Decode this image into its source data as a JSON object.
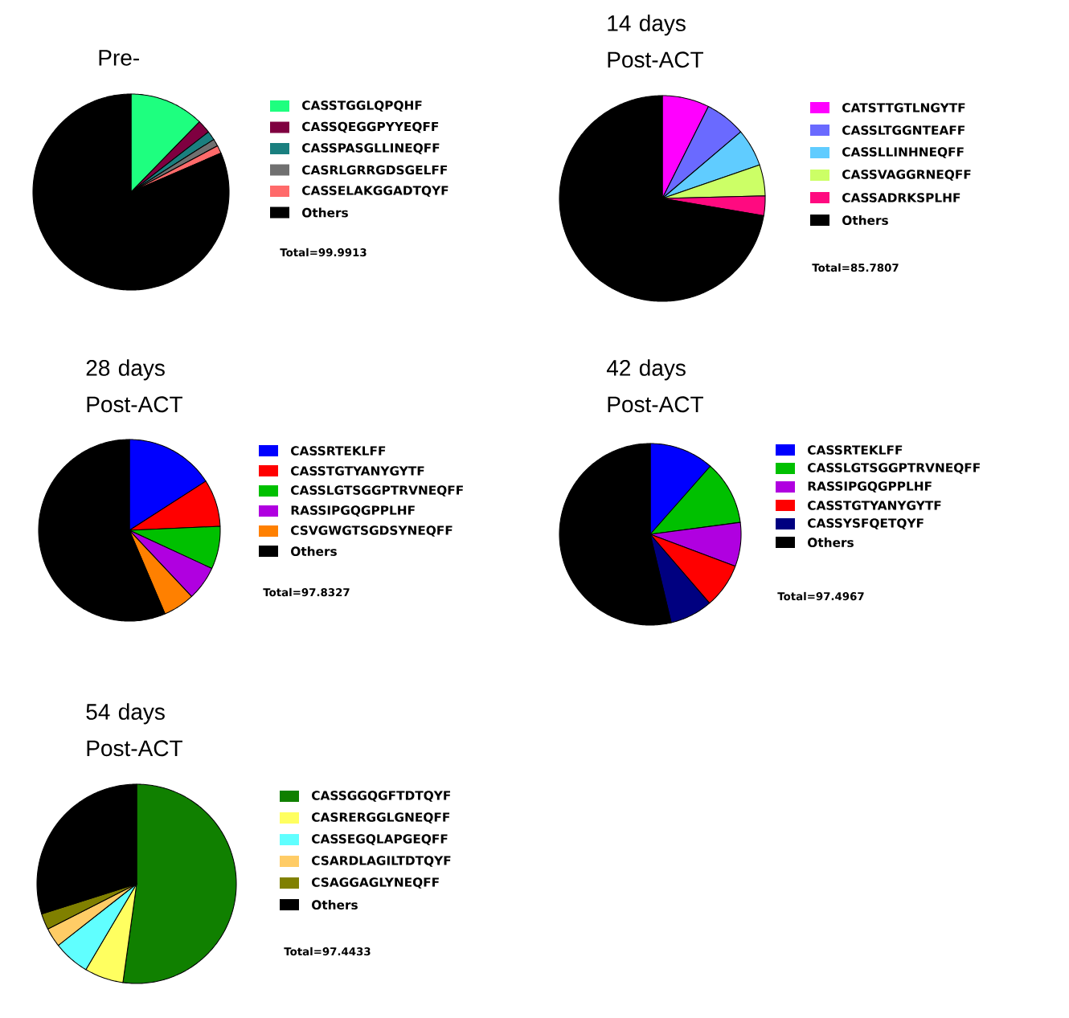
{
  "chart_data": [
    {
      "type": "pie",
      "title": "Pre-",
      "legend": "right",
      "annotations": [
        "Total=99.9913"
      ],
      "categories": [
        "CASSTGGLQPQHF",
        "CASSQEGGPYYEQFF",
        "CASSPASGLLINEQFF",
        "CASRLGRRGDSGELFF",
        "CASSELAKGGADTQYF",
        "Others"
      ],
      "values": [
        12.3,
        2.2,
        1.5,
        1.2,
        1.3,
        81.5
      ],
      "colors": [
        "#1eff7f",
        "#7f0040",
        "#1a7f7f",
        "#707070",
        "#ff6a6a",
        "#000000"
      ]
    },
    {
      "type": "pie",
      "title": "14 days Post-ACT",
      "legend": "right",
      "annotations": [
        "Total=85.7807"
      ],
      "categories": [
        "CATSTTGTLNGYTF",
        "CASSLTGGNTEAFF",
        "CASSLLINHNEQFF",
        "CASSVAGGRNEQFF",
        "CASSADRKSPLHF",
        "Others"
      ],
      "values": [
        7.4,
        6.4,
        5.9,
        4.9,
        3.1,
        72.3
      ],
      "colors": [
        "#ff00ff",
        "#6a6aff",
        "#60ccff",
        "#ccff66",
        "#ff0a80",
        "#000000"
      ]
    },
    {
      "type": "pie",
      "title": "28 days Post-ACT",
      "legend": "right",
      "annotations": [
        "Total=97.8327"
      ],
      "categories": [
        "CASSRTEKLFF",
        "CASSTGTYANYGYTF",
        "CASSLGTSGGPTRVNEQFF",
        "RASSIPGQGPPLHF",
        "CSVGWGTSGDSYNEQFF",
        "Others"
      ],
      "values": [
        15.9,
        8.4,
        7.6,
        6.1,
        5.6,
        56.4
      ],
      "colors": [
        "#0000ff",
        "#ff0000",
        "#00c000",
        "#b000e0",
        "#ff8000",
        "#000000"
      ]
    },
    {
      "type": "pie",
      "title": "42 days Post-ACT",
      "legend": "right",
      "annotations": [
        "Total=97.4967"
      ],
      "categories": [
        "CASSRTEKLFF",
        "CASSLGTSGGPTRVNEQFF",
        "RASSIPGQGPPLHF",
        "CASSTGTYANYGYTF",
        "CASSYSFQETQYF",
        "Others"
      ],
      "values": [
        11.5,
        11.4,
        7.8,
        8.0,
        7.6,
        53.7
      ],
      "colors": [
        "#0000ff",
        "#00c000",
        "#b000e0",
        "#ff0000",
        "#000080",
        "#000000"
      ]
    },
    {
      "type": "pie",
      "title": "54 days Post-ACT",
      "legend": "right",
      "annotations": [
        "Total=97.4433"
      ],
      "categories": [
        "CASSGGQGFTDTQYF",
        "CASRERGGLGNEQFF",
        "CASSEGQLAPGEQFF",
        "CSARDLAGILTDTQYF",
        "CSAGGAGLYNEQFF",
        "Others"
      ],
      "values": [
        52.2,
        6.3,
        5.9,
        3.1,
        2.6,
        29.9
      ],
      "colors": [
        "#108000",
        "#ffff60",
        "#60ffff",
        "#ffcc66",
        "#808000",
        "#000000"
      ]
    }
  ]
}
